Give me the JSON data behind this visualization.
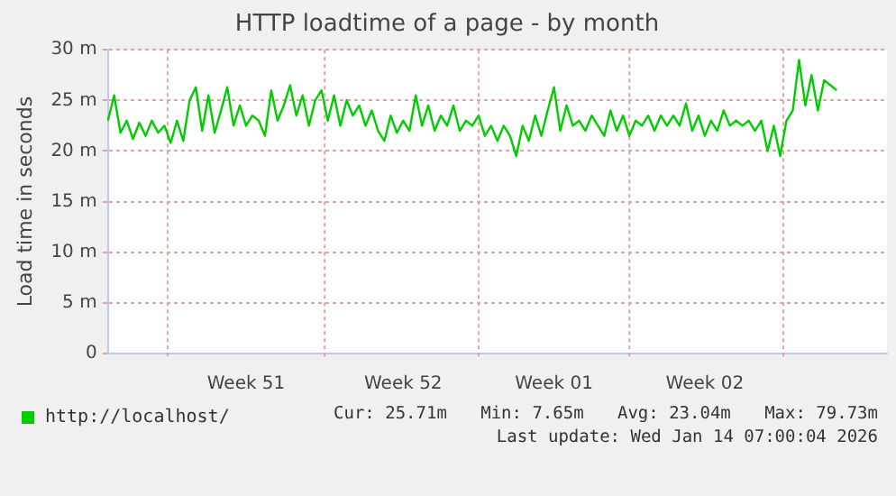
{
  "chart_data": {
    "type": "line",
    "title": "HTTP loadtime of a page - by month",
    "ylabel": "Load time in seconds",
    "categories": [
      null,
      null,
      null,
      null,
      null,
      null,
      null,
      null,
      null,
      null,
      null,
      null,
      null,
      null,
      null,
      null,
      null,
      null,
      null,
      null,
      null,
      null,
      "Week 51",
      null,
      null,
      null,
      null,
      null,
      null,
      null,
      null,
      null,
      null,
      null,
      null,
      null,
      null,
      null,
      null,
      null,
      null,
      null,
      null,
      null,
      null,
      null,
      null,
      "Week 52",
      null,
      null,
      null,
      null,
      null,
      null,
      null,
      null,
      null,
      null,
      null,
      null,
      null,
      null,
      null,
      null,
      null,
      null,
      null,
      null,
      null,
      null,
      null,
      "Week 01",
      null,
      null,
      null,
      null,
      null,
      null,
      null,
      null,
      null,
      null,
      null,
      null,
      null,
      null,
      null,
      null,
      null,
      null,
      null,
      null,
      null,
      null,
      null,
      "Week 02",
      null,
      null,
      null,
      null,
      null,
      null,
      null,
      null,
      null,
      null,
      null,
      null,
      null,
      null,
      null,
      null,
      null,
      null,
      null,
      null,
      null,
      null,
      null,
      null,
      null,
      null,
      null,
      null,
      null
    ],
    "ylim": [
      0,
      30
    ],
    "yticks": [
      {
        "value": 0,
        "label": "0"
      },
      {
        "value": 5,
        "label": "5 m"
      },
      {
        "value": 10,
        "label": "10 m"
      },
      {
        "value": 15,
        "label": "15 m"
      },
      {
        "value": 20,
        "label": "20 m"
      },
      {
        "value": 25,
        "label": "25 m"
      },
      {
        "value": 30,
        "label": "30 m"
      }
    ],
    "grid": true,
    "legend": "bottom",
    "marker": "none",
    "line_style": "solid",
    "series": [
      {
        "name": "http://localhost/",
        "color": "#00cc00",
        "values": [
          23,
          25.5,
          21.8,
          23,
          21.2,
          22.8,
          21.5,
          23,
          21.8,
          22.5,
          20.8,
          23,
          21,
          25,
          26.3,
          22,
          25.5,
          21.8,
          24,
          26.3,
          22.5,
          24.5,
          22.5,
          23.5,
          23,
          21.5,
          26,
          23,
          24.5,
          26.5,
          23.5,
          25.5,
          22.5,
          25,
          26,
          23,
          25.5,
          22.5,
          25,
          23.5,
          24.5,
          22.5,
          24,
          22,
          21,
          23.5,
          21.8,
          23,
          22,
          25.5,
          22.5,
          24.5,
          22,
          23.5,
          22.5,
          24.5,
          22,
          23,
          22.5,
          23.5,
          21.5,
          22.5,
          21,
          22.5,
          21.5,
          19.5,
          22.5,
          21,
          23.5,
          21.5,
          24,
          26.3,
          22,
          24.5,
          22.5,
          23,
          22,
          23.5,
          22.5,
          21.5,
          24,
          22,
          23.5,
          21.5,
          23,
          22.5,
          23.5,
          22,
          23.5,
          22.5,
          23.5,
          22.5,
          24.7,
          22,
          23.5,
          21.5,
          23,
          22,
          24,
          22.5,
          23,
          22.5,
          23,
          22,
          23,
          20,
          22.5,
          19.5,
          23,
          24,
          29,
          24.5,
          27.5,
          24,
          27,
          26.5,
          26,
          null,
          null,
          null,
          null,
          null,
          null,
          null,
          null
        ]
      }
    ],
    "annotations": [
      "Cur: 25.71m",
      "Min: 7.65m",
      "Avg: 23.04m",
      "Max: 79.73m",
      "Last update: Wed Jan 14 07:00:04 2026"
    ]
  }
}
